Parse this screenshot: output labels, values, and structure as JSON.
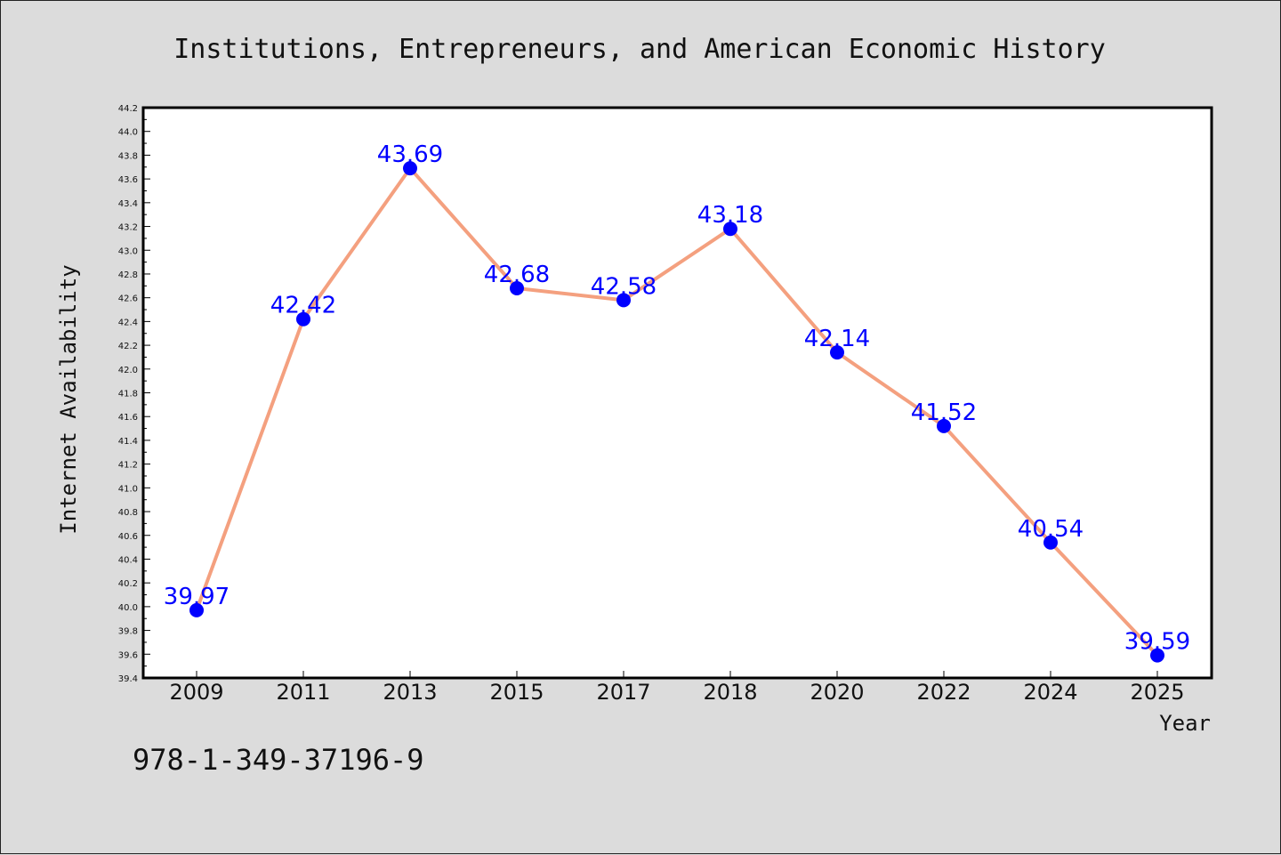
{
  "chart_data": {
    "type": "line",
    "title": "Institutions, Entrepreneurs, and American Economic History",
    "xlabel": "Year",
    "ylabel": "Internet Availability",
    "categories": [
      "2009",
      "2011",
      "2013",
      "2015",
      "2017",
      "2018",
      "2020",
      "2022",
      "2024",
      "2025"
    ],
    "series": [
      {
        "values": [
          39.97,
          42.42,
          43.69,
          42.68,
          42.58,
          43.18,
          42.14,
          41.52,
          40.54,
          39.59
        ],
        "labels": [
          "39.97",
          "42.42",
          "43.69",
          "42.68",
          "42.58",
          "43.18",
          "42.14",
          "41.52",
          "40.54",
          "39.59"
        ],
        "line_color": "#f4a07f",
        "marker_color": "#0000ff",
        "label_color": "#0000ff"
      }
    ],
    "ylim": [
      39.4,
      44.2
    ],
    "yticks": [
      "39.4",
      "39.6",
      "39.8",
      "40.0",
      "40.2",
      "40.4",
      "40.6",
      "40.8",
      "41.0",
      "41.2",
      "41.4",
      "41.6",
      "41.8",
      "42.0",
      "42.2",
      "42.4",
      "42.6",
      "42.8",
      "43.0",
      "43.2",
      "43.4",
      "43.6",
      "43.8",
      "44.0",
      "44.2"
    ],
    "grid": false,
    "legend": "none"
  },
  "footer": {
    "isbn": "978-1-349-37196-9"
  },
  "colors": {
    "background": "#dcdcdc",
    "plot_background": "#ffffff"
  }
}
